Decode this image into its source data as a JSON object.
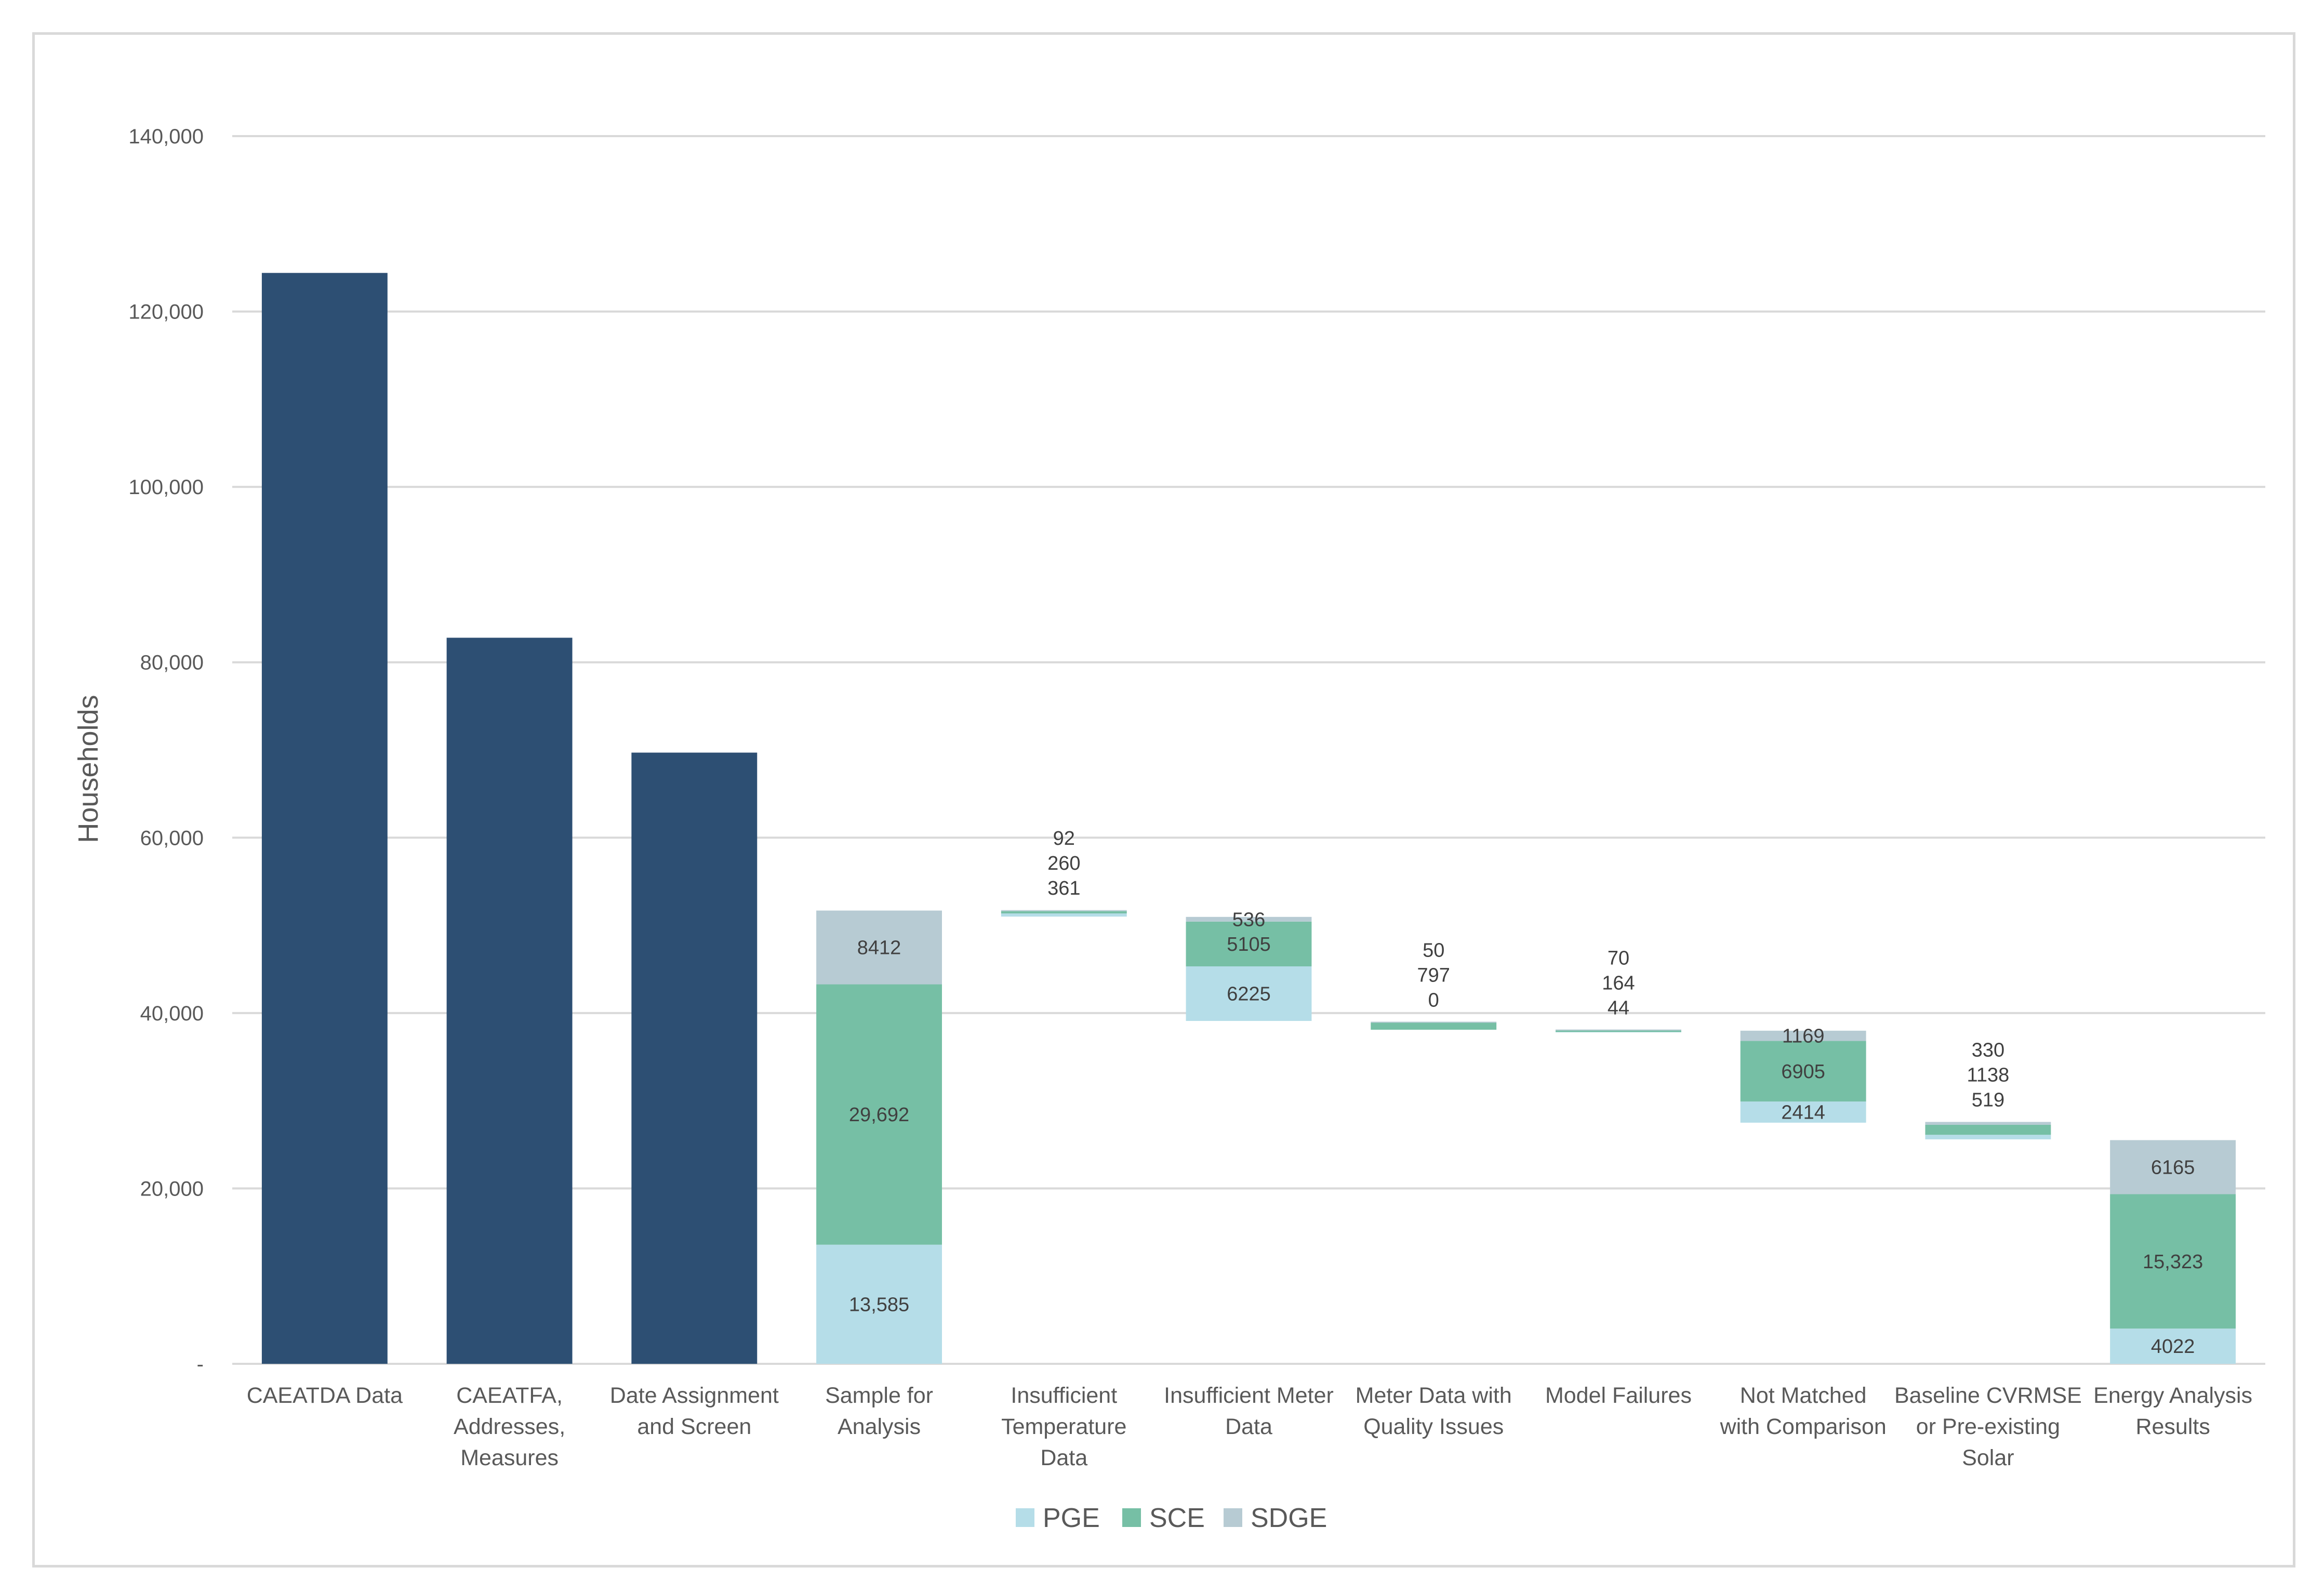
{
  "chart_data": {
    "type": "bar",
    "subtype": "stacked-waterfall",
    "title": "",
    "xlabel": "",
    "ylabel": "Households",
    "ylim": [
      0,
      140000
    ],
    "yticks": [
      0,
      20000,
      40000,
      60000,
      80000,
      100000,
      120000,
      140000
    ],
    "ytick_labels": [
      "-",
      "20,000",
      "40,000",
      "60,000",
      "80,000",
      "100,000",
      "120,000",
      "140,000"
    ],
    "grid": true,
    "legend_position": "bottom",
    "colors": {
      "Total": "#2d4f73",
      "PGE": "#b5dde8",
      "SCE": "#76bfa5",
      "SDGE": "#b7cbd3"
    },
    "legend": [
      "PGE",
      "SCE",
      "SDGE"
    ],
    "categories": [
      {
        "label": [
          "CAEATDA Data"
        ],
        "base": 0,
        "total": 124400
      },
      {
        "label": [
          "CAEATFA,",
          "Addresses,",
          "Measures"
        ],
        "base": 0,
        "total": 82800
      },
      {
        "label": [
          "Date Assignment",
          "and Screen"
        ],
        "base": 0,
        "total": 69700
      },
      {
        "label": [
          "Sample for",
          "Analysis"
        ],
        "base": 0,
        "segments": [
          {
            "series": "PGE",
            "value": 13585,
            "label": "13,585"
          },
          {
            "series": "SCE",
            "value": 29692,
            "label": "29,692"
          },
          {
            "series": "SDGE",
            "value": 8412,
            "label": "8412"
          }
        ],
        "label_mode": "inside"
      },
      {
        "label": [
          "Insufficient",
          "Temperature",
          "Data"
        ],
        "base": 51000,
        "segments": [
          {
            "series": "PGE",
            "value": 361,
            "label": "361"
          },
          {
            "series": "SCE",
            "value": 260,
            "label": "260"
          },
          {
            "series": "SDGE",
            "value": 92,
            "label": "92"
          }
        ],
        "label_mode": "above"
      },
      {
        "label": [
          "Insufficient Meter",
          "Data"
        ],
        "base": 39100,
        "segments": [
          {
            "series": "PGE",
            "value": 6225,
            "label": "6225"
          },
          {
            "series": "SCE",
            "value": 5105,
            "label": "5105"
          },
          {
            "series": "SDGE",
            "value": 536,
            "label": "536"
          }
        ],
        "label_mode": "inside"
      },
      {
        "label": [
          "Meter Data with",
          "Quality Issues"
        ],
        "base": 38100,
        "segments": [
          {
            "series": "PGE",
            "value": 0,
            "label": "0"
          },
          {
            "series": "SCE",
            "value": 797,
            "label": "797"
          },
          {
            "series": "SDGE",
            "value": 50,
            "label": "50"
          }
        ],
        "label_mode": "above"
      },
      {
        "label": [
          "Model Failures"
        ],
        "base": 37800,
        "segments": [
          {
            "series": "PGE",
            "value": 44,
            "label": "44"
          },
          {
            "series": "SCE",
            "value": 164,
            "label": "164"
          },
          {
            "series": "SDGE",
            "value": 70,
            "label": "70"
          }
        ],
        "label_mode": "above"
      },
      {
        "label": [
          "Not Matched",
          "with Comparison"
        ],
        "base": 27500,
        "segments": [
          {
            "series": "PGE",
            "value": 2414,
            "label": "2414"
          },
          {
            "series": "SCE",
            "value": 6905,
            "label": "6905"
          },
          {
            "series": "SDGE",
            "value": 1169,
            "label": "1169"
          }
        ],
        "label_mode": "inside"
      },
      {
        "label": [
          "Baseline CVRMSE",
          "or Pre-existing",
          "Solar"
        ],
        "base": 25600,
        "segments": [
          {
            "series": "PGE",
            "value": 519,
            "label": "519"
          },
          {
            "series": "SCE",
            "value": 1138,
            "label": "1138"
          },
          {
            "series": "SDGE",
            "value": 330,
            "label": "330"
          }
        ],
        "label_mode": "above"
      },
      {
        "label": [
          "Energy Analysis",
          "Results"
        ],
        "base": 0,
        "segments": [
          {
            "series": "PGE",
            "value": 4022,
            "label": "4022"
          },
          {
            "series": "SCE",
            "value": 15323,
            "label": "15,323"
          },
          {
            "series": "SDGE",
            "value": 6165,
            "label": "6165"
          }
        ],
        "label_mode": "inside"
      }
    ]
  }
}
